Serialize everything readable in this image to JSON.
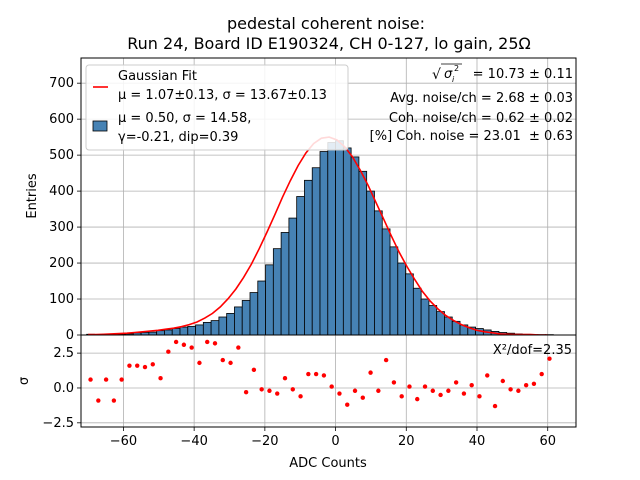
{
  "chart_data": [
    {
      "type": "bar",
      "title_line1": "pedestal coherent noise:",
      "title_line2": "Run 24, Board ID E190324, CH 0-127, lo gain, 25Ω",
      "xlabel": "",
      "ylabel": "Entries",
      "xlim": [
        -72,
        68
      ],
      "ylim": [
        0,
        770
      ],
      "xticks": [
        -60,
        -40,
        -20,
        0,
        20,
        40,
        60
      ],
      "yticks": [
        0,
        100,
        200,
        300,
        400,
        500,
        600,
        700
      ],
      "grid": true,
      "bin_width": 2.2,
      "x": [
        -69.3,
        -67.1,
        -64.9,
        -62.7,
        -60.5,
        -58.3,
        -56.1,
        -53.9,
        -51.7,
        -49.5,
        -47.3,
        -45.1,
        -42.9,
        -40.7,
        -38.5,
        -36.3,
        -34.1,
        -31.9,
        -29.7,
        -27.5,
        -25.3,
        -23.1,
        -20.9,
        -18.7,
        -16.5,
        -14.3,
        -12.1,
        -9.9,
        -7.7,
        -5.5,
        -3.3,
        -1.1,
        1.1,
        3.3,
        5.5,
        7.7,
        9.9,
        12.1,
        14.3,
        16.5,
        18.7,
        20.9,
        23.1,
        25.3,
        27.5,
        29.7,
        31.9,
        34.1,
        36.3,
        38.5,
        40.7,
        42.9,
        45.1,
        47.3,
        49.5,
        51.7,
        53.9,
        56.1,
        58.3,
        60.5
      ],
      "values": [
        2,
        1,
        2,
        1,
        2,
        3,
        6,
        7,
        8,
        12,
        14,
        18,
        22,
        24,
        28,
        35,
        40,
        50,
        60,
        78,
        96,
        118,
        150,
        195,
        240,
        285,
        325,
        385,
        430,
        465,
        510,
        535,
        540,
        520,
        495,
        455,
        400,
        345,
        295,
        245,
        200,
        170,
        130,
        100,
        82,
        65,
        50,
        38,
        28,
        22,
        18,
        14,
        10,
        7,
        5,
        3,
        2,
        1,
        1,
        1
      ],
      "fit_values": [
        1,
        1,
        2,
        3,
        4,
        5,
        7,
        9,
        11,
        13,
        16,
        19,
        23,
        29,
        36,
        47,
        60,
        78,
        101,
        128,
        160,
        197,
        240,
        286,
        334,
        383,
        429,
        471,
        506,
        532,
        547,
        550,
        542,
        523,
        495,
        458,
        416,
        369,
        322,
        275,
        230,
        190,
        154,
        121,
        94,
        72,
        54,
        40,
        29,
        20,
        13,
        9,
        6,
        3,
        2,
        1,
        1,
        1,
        0,
        0
      ],
      "fit_x": [
        -70,
        -67.8,
        -65.6,
        -63.4,
        -61.2,
        -59,
        -56.8,
        -54.6,
        -52.4,
        -50.2,
        -48,
        -45.8,
        -43.6,
        -41.4,
        -39.2,
        -37,
        -34.8,
        -32.6,
        -30.4,
        -28.2,
        -26,
        -23.8,
        -21.6,
        -19.4,
        -17.2,
        -15,
        -12.8,
        -10.6,
        -8.4,
        -6.2,
        -4,
        -1.8,
        0.4,
        2.6,
        4.8,
        7,
        9.2,
        11.4,
        13.6,
        15.8,
        18,
        20.2,
        22.4,
        24.6,
        26.8,
        29,
        31.2,
        33.4,
        35.6,
        37.8,
        40,
        42.2,
        44.4,
        46.6,
        48.8,
        51,
        53.2,
        55.4,
        57.6,
        60
      ],
      "series": [
        {
          "name": "Gaussian Fit",
          "label_line2": "μ = 1.07±0.13, σ = 13.67±0.13",
          "color": "#ff0000"
        },
        {
          "name": "μ = 0.50, σ = 14.58,",
          "label_line2": "γ=-0.21, dip=0.39",
          "color": "#4682b4"
        }
      ],
      "legend_position": "top-left",
      "annotations": [
        {
          "sqrt_symbol": "√",
          "sigma_label": "σ",
          "sigma_sub": "i",
          "sigma_sup": "2",
          "text": " = 10.73 ± 0.11"
        },
        {
          "text": "Avg. noise/ch = 2.68 ± 0.03"
        },
        {
          "text": "Coh. noise/ch = 0.62 ± 0.02"
        },
        {
          "text": "[%] Coh. noise = 23.01  ± 0.63"
        }
      ]
    },
    {
      "type": "scatter",
      "xlabel": "ADC Counts",
      "ylabel": "σ",
      "xlim": [
        -72,
        68
      ],
      "ylim": [
        -2.8,
        3.8
      ],
      "xticks": [
        -60,
        -40,
        -20,
        0,
        20,
        40,
        60
      ],
      "yticks": [
        -2.5,
        0.0,
        2.5
      ],
      "ytick_labels": [
        "−2.5",
        "0.0",
        "2.5"
      ],
      "xtick_labels": [
        "−60",
        "−40",
        "−20",
        "0",
        "20",
        "40",
        "60"
      ],
      "grid": true,
      "color": "#ff0000",
      "annotation": "X²/dof=2.35",
      "x": [
        -69.3,
        -67.1,
        -64.9,
        -62.7,
        -60.5,
        -58.3,
        -56.1,
        -53.9,
        -51.7,
        -49.5,
        -47.3,
        -45.1,
        -42.9,
        -40.7,
        -38.5,
        -36.3,
        -34.1,
        -31.9,
        -29.7,
        -27.5,
        -25.3,
        -23.1,
        -20.9,
        -18.7,
        -16.5,
        -14.3,
        -12.1,
        -9.9,
        -7.7,
        -5.5,
        -3.3,
        -1.1,
        1.1,
        3.3,
        5.5,
        7.7,
        9.9,
        12.1,
        14.3,
        16.5,
        18.7,
        20.9,
        23.1,
        25.3,
        27.5,
        29.7,
        31.9,
        34.1,
        36.3,
        38.5,
        40.7,
        42.9,
        45.1,
        47.3,
        49.5,
        51.7,
        53.9,
        56.1,
        58.3,
        60.5
      ],
      "y": [
        0.6,
        -0.9,
        0.6,
        -0.9,
        0.6,
        1.6,
        1.6,
        1.5,
        1.7,
        0.7,
        2.6,
        3.3,
        3.1,
        2.9,
        1.8,
        3.3,
        3.2,
        2.0,
        1.8,
        2.9,
        -0.3,
        1.3,
        -0.1,
        -0.2,
        -0.4,
        0.7,
        -0.1,
        -0.6,
        1.0,
        1.0,
        0.9,
        0.1,
        -0.4,
        -1.2,
        -0.2,
        -0.7,
        1.1,
        -0.2,
        2.0,
        0.4,
        -0.6,
        0.1,
        -0.8,
        0.1,
        -0.2,
        -0.5,
        -0.2,
        0.4,
        -0.4,
        0.2,
        -0.6,
        0.9,
        -1.3,
        0.5,
        -0.1,
        -0.2,
        0.2,
        0.3,
        1.0,
        2.1
      ]
    }
  ]
}
